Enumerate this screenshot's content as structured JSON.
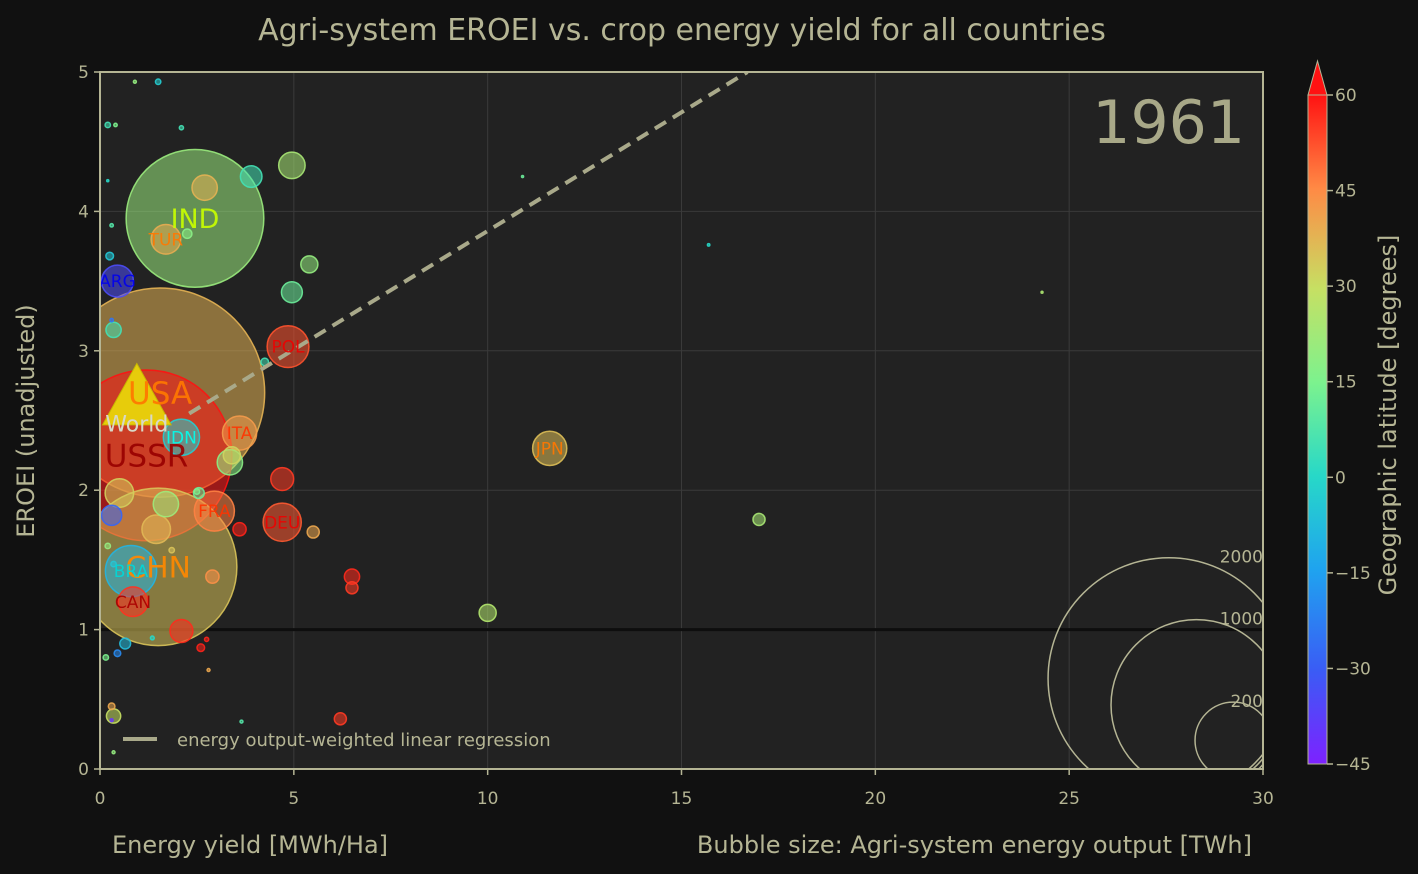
{
  "chart_data": {
    "type": "scatter",
    "title": "Agri-system EROEI vs. crop energy yield for all countries",
    "xlabel": "Energy yield [MWh/Ha]",
    "ylabel": "EROEI (unadjusted)",
    "size_label": "Bubble size: Agri-system energy output [TWh]",
    "year_label": "1961",
    "xlim": [
      0,
      30
    ],
    "ylim": [
      0,
      5
    ],
    "x_ticks": [
      "0",
      "5",
      "10",
      "15",
      "20",
      "25",
      "30"
    ],
    "y_ticks": [
      "0",
      "1",
      "2",
      "3",
      "4",
      "5"
    ],
    "grid": true,
    "reference_line_y": 1,
    "legend": {
      "location": "bottom-left",
      "entries": [
        "energy output-weighted linear regression"
      ]
    },
    "regression": {
      "x": [
        2.3,
        16.7
      ],
      "y": [
        2.55,
        5.0
      ],
      "style": "dashed"
    },
    "colorbar": {
      "label": "Geographic latitude [degrees]",
      "range": [
        -45,
        60
      ],
      "ticks": [
        "60",
        "45",
        "30",
        "15",
        "0",
        "−15",
        "−30",
        "−45"
      ]
    },
    "size_legend": {
      "location": "bottom-right",
      "values": [
        2000,
        1000,
        200
      ],
      "labels": [
        "2000",
        "1000",
        "200"
      ]
    },
    "world": {
      "label": "World",
      "x": 0.95,
      "y": 2.65,
      "output_twh": 2450
    },
    "labeled_points": [
      {
        "label": "USA",
        "x": 1.55,
        "y": 2.7,
        "output_twh": 1500,
        "latitude": 38,
        "label_color": "#ff7700"
      },
      {
        "label": "USSR",
        "x": 1.2,
        "y": 2.25,
        "output_twh": 1000,
        "latitude": 60,
        "label_color": "#990000"
      },
      {
        "label": "CHN",
        "x": 1.5,
        "y": 1.45,
        "output_twh": 850,
        "latitude": 35,
        "label_color": "#ff8800"
      },
      {
        "label": "IND",
        "x": 2.45,
        "y": 3.95,
        "output_twh": 650,
        "latitude": 21,
        "label_color": "#c8ff00"
      },
      {
        "label": "BRA",
        "x": 0.8,
        "y": 1.42,
        "output_twh": 90,
        "latitude": -10,
        "label_color": "#00d8d8"
      },
      {
        "label": "POL",
        "x": 4.85,
        "y": 3.03,
        "output_twh": 60,
        "latitude": 52,
        "label_color": "#ee0000"
      },
      {
        "label": "ARG",
        "x": 0.45,
        "y": 3.5,
        "output_twh": 35,
        "latitude": -34,
        "label_color": "#0000ee"
      },
      {
        "label": "TUR",
        "x": 1.7,
        "y": 3.8,
        "output_twh": 30,
        "latitude": 39,
        "label_color": "#ff7700"
      },
      {
        "label": "IDN",
        "x": 2.1,
        "y": 2.38,
        "output_twh": 45,
        "latitude": -3,
        "label_color": "#00ffee"
      },
      {
        "label": "ITA",
        "x": 3.6,
        "y": 2.41,
        "output_twh": 40,
        "latitude": 42,
        "label_color": "#ff3300"
      },
      {
        "label": "JPN",
        "x": 11.6,
        "y": 2.3,
        "output_twh": 40,
        "latitude": 36,
        "label_color": "#ff7700"
      },
      {
        "label": "FRA",
        "x": 2.95,
        "y": 1.85,
        "output_twh": 55,
        "latitude": 46,
        "label_color": "#ff3300"
      },
      {
        "label": "DEU",
        "x": 4.7,
        "y": 1.77,
        "output_twh": 50,
        "latitude": 51,
        "label_color": "#ee0000"
      },
      {
        "label": "CAN",
        "x": 0.85,
        "y": 1.2,
        "output_twh": 30,
        "latitude": 56,
        "label_color": "#aa0000"
      }
    ],
    "points": [
      {
        "x": 4.95,
        "y": 4.33,
        "output_twh": 24,
        "latitude": 24
      },
      {
        "x": 3.9,
        "y": 4.25,
        "output_twh": 16,
        "latitude": 5
      },
      {
        "x": 2.7,
        "y": 4.17,
        "output_twh": 22,
        "latitude": 38
      },
      {
        "x": 5.4,
        "y": 3.62,
        "output_twh": 10,
        "latitude": 20
      },
      {
        "x": 4.95,
        "y": 3.42,
        "output_twh": 15,
        "latitude": 12
      },
      {
        "x": 0.35,
        "y": 3.15,
        "output_twh": 8,
        "latitude": 5
      },
      {
        "x": 3.35,
        "y": 2.2,
        "output_twh": 22,
        "latitude": 18
      },
      {
        "x": 3.4,
        "y": 2.25,
        "output_twh": 10,
        "latitude": 32
      },
      {
        "x": 4.7,
        "y": 2.08,
        "output_twh": 18,
        "latitude": 55
      },
      {
        "x": 0.5,
        "y": 1.98,
        "output_twh": 28,
        "latitude": 33
      },
      {
        "x": 1.7,
        "y": 1.9,
        "output_twh": 22,
        "latitude": 22
      },
      {
        "x": 0.3,
        "y": 1.82,
        "output_twh": 14,
        "latitude": -28
      },
      {
        "x": 1.45,
        "y": 1.72,
        "output_twh": 28,
        "latitude": 37
      },
      {
        "x": 3.6,
        "y": 1.72,
        "output_twh": 6,
        "latitude": 58
      },
      {
        "x": 5.5,
        "y": 1.7,
        "output_twh": 5,
        "latitude": 40
      },
      {
        "x": 2.55,
        "y": 1.98,
        "output_twh": 4,
        "latitude": 12
      },
      {
        "x": 6.5,
        "y": 1.38,
        "output_twh": 8,
        "latitude": 57
      },
      {
        "x": 6.5,
        "y": 1.3,
        "output_twh": 5,
        "latitude": 55
      },
      {
        "x": 2.9,
        "y": 1.38,
        "output_twh": 6,
        "latitude": 44
      },
      {
        "x": 2.1,
        "y": 0.99,
        "output_twh": 18,
        "latitude": 57
      },
      {
        "x": 10.0,
        "y": 1.12,
        "output_twh": 10,
        "latitude": 26
      },
      {
        "x": 17.0,
        "y": 1.79,
        "output_twh": 5,
        "latitude": 24
      },
      {
        "x": 6.2,
        "y": 0.36,
        "output_twh": 5,
        "latitude": 55
      },
      {
        "x": 0.35,
        "y": 0.38,
        "output_twh": 7,
        "latitude": 30
      },
      {
        "x": 0.65,
        "y": 0.9,
        "output_twh": 4,
        "latitude": -8
      },
      {
        "x": 2.6,
        "y": 0.87,
        "output_twh": 2,
        "latitude": 58
      },
      {
        "x": 1.5,
        "y": 4.93,
        "output_twh": 1,
        "latitude": -3
      },
      {
        "x": 0.2,
        "y": 4.62,
        "output_twh": 1,
        "latitude": 5
      },
      {
        "x": 2.1,
        "y": 4.6,
        "output_twh": 0.6,
        "latitude": 5
      },
      {
        "x": 0.25,
        "y": 3.68,
        "output_twh": 2,
        "latitude": -5
      },
      {
        "x": 2.25,
        "y": 3.84,
        "output_twh": 3,
        "latitude": 18
      },
      {
        "x": 4.25,
        "y": 2.92,
        "output_twh": 2,
        "latitude": 5
      },
      {
        "x": 2.5,
        "y": 1.99,
        "output_twh": 1,
        "latitude": 15
      },
      {
        "x": 0.2,
        "y": 1.6,
        "output_twh": 1,
        "latitude": 20
      },
      {
        "x": 0.35,
        "y": 0.12,
        "output_twh": 0.3,
        "latitude": 20
      },
      {
        "x": 0.9,
        "y": 4.93,
        "output_twh": 0.3,
        "latitude": 20
      },
      {
        "x": 0.4,
        "y": 4.62,
        "output_twh": 0.4,
        "latitude": 15
      },
      {
        "x": 0.3,
        "y": 3.9,
        "output_twh": 0.4,
        "latitude": 8
      },
      {
        "x": 0.15,
        "y": 0.8,
        "output_twh": 1,
        "latitude": 15
      },
      {
        "x": 0.45,
        "y": 0.83,
        "output_twh": 1.5,
        "latitude": -20
      },
      {
        "x": 0.3,
        "y": 0.45,
        "output_twh": 1.5,
        "latitude": 40
      },
      {
        "x": 3.65,
        "y": 0.34,
        "output_twh": 0.3,
        "latitude": 8
      },
      {
        "x": 2.8,
        "y": 0.71,
        "output_twh": 0.3,
        "latitude": 40
      },
      {
        "x": 2.75,
        "y": 0.93,
        "output_twh": 0.6,
        "latitude": 58
      },
      {
        "x": 1.35,
        "y": 0.94,
        "output_twh": 0.5,
        "latitude": 0
      },
      {
        "x": 15.7,
        "y": 3.76,
        "output_twh": 0.2,
        "latitude": 0
      },
      {
        "x": 10.9,
        "y": 4.25,
        "output_twh": 0.15,
        "latitude": 12
      },
      {
        "x": 24.3,
        "y": 3.42,
        "output_twh": 0.05,
        "latitude": 25
      },
      {
        "x": 0.3,
        "y": 0.35,
        "output_twh": 0.3,
        "latitude": -40
      },
      {
        "x": 0.35,
        "y": 1.47,
        "output_twh": 1,
        "latitude": -5
      },
      {
        "x": 1.85,
        "y": 1.57,
        "output_twh": 1,
        "latitude": 35
      },
      {
        "x": 0.2,
        "y": 4.22,
        "output_twh": 0.15,
        "latitude": 0
      },
      {
        "x": 0.3,
        "y": 3.22,
        "output_twh": 0.4,
        "latitude": -25
      }
    ]
  }
}
